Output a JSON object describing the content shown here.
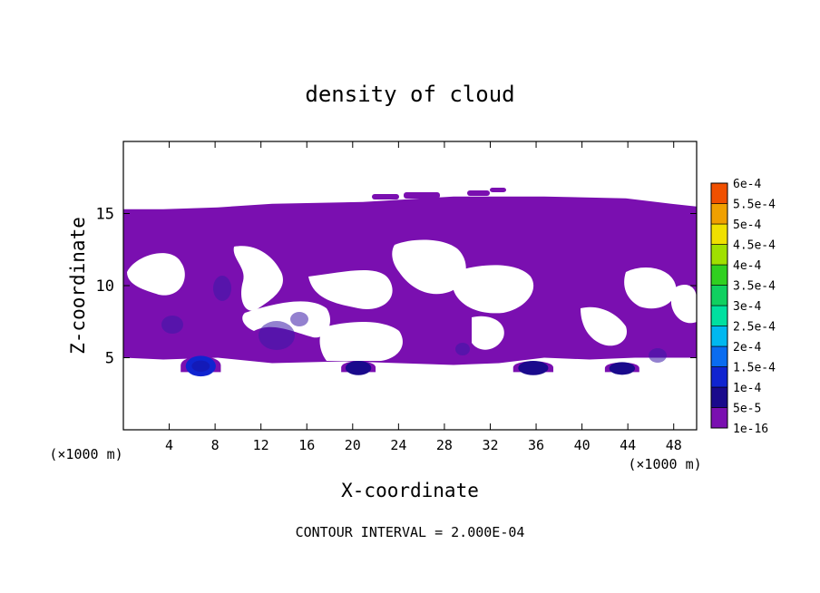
{
  "chart_data": {
    "type": "heatmap",
    "title": "density of cloud",
    "xlabel": "X-coordinate",
    "ylabel": "Z-coordinate",
    "x_unit": "(×1000 m)",
    "y_unit": "(×1000 m)",
    "footer": "CONTOUR INTERVAL = 2.000E-04",
    "xlim": [
      0,
      50
    ],
    "ylim": [
      0,
      20
    ],
    "x_ticks": [
      4,
      8,
      12,
      16,
      20,
      24,
      28,
      32,
      36,
      40,
      44,
      48
    ],
    "y_ticks": [
      5,
      10,
      15
    ],
    "colorbar": {
      "levels": [
        "1e-16",
        "5e-5",
        "1e-4",
        "1.5e-4",
        "2e-4",
        "2.5e-4",
        "3e-4",
        "3.5e-4",
        "4e-4",
        "4.5e-4",
        "5e-4",
        "5.5e-4",
        "6e-4"
      ],
      "colors": [
        "#7a0fb0",
        "#1a0a8c",
        "#1024d0",
        "#0a6cf0",
        "#00b8f0",
        "#00e0a0",
        "#10d060",
        "#30d020",
        "#a0e000",
        "#f0e000",
        "#f0a000",
        "#f05000",
        "#f02020",
        "#f08080"
      ]
    },
    "regions": {
      "main_layer": {
        "x": [
          0,
          50
        ],
        "z": [
          5,
          15.3
        ],
        "level": "1e-16"
      },
      "lower_patches": [
        {
          "x": [
            5,
            8.5
          ],
          "z": [
            4,
            5.3
          ],
          "level": "1e-4"
        },
        {
          "x": [
            19,
            22
          ],
          "z": [
            4,
            4.9
          ],
          "level": "5e-5"
        },
        {
          "x": [
            34,
            37.5
          ],
          "z": [
            4,
            4.9
          ],
          "level": "5e-5"
        },
        {
          "x": [
            42,
            45
          ],
          "z": [
            4,
            4.8
          ],
          "level": "5e-5"
        }
      ]
    }
  }
}
